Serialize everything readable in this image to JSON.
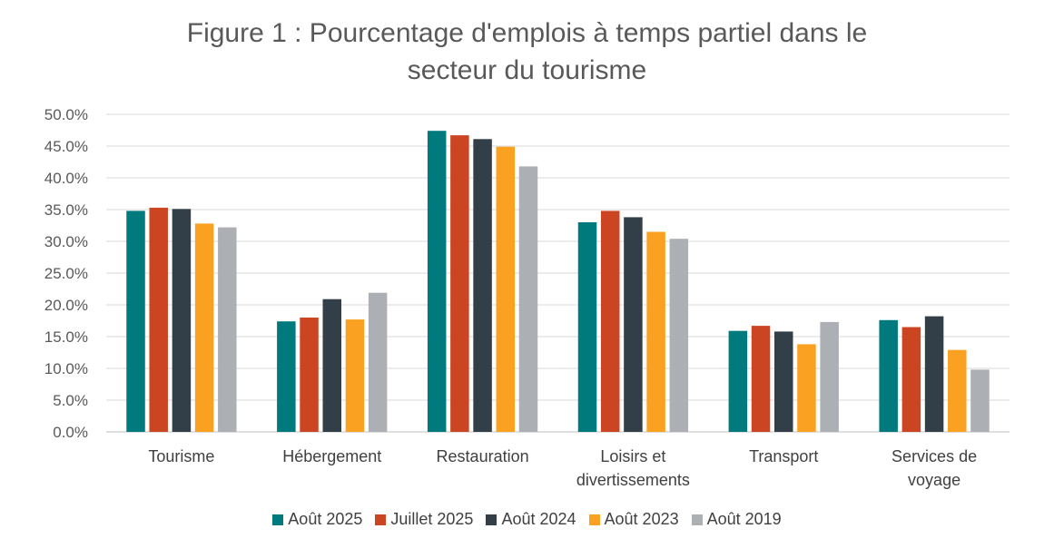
{
  "chart_data": {
    "type": "bar",
    "title_lines": [
      "Figure 1 : Pourcentage d'emplois à temps partiel dans le",
      "secteur du tourisme"
    ],
    "categories": [
      [
        "Tourisme"
      ],
      [
        "Hébergement"
      ],
      [
        "Restauration"
      ],
      [
        "Loisirs et",
        "divertissements"
      ],
      [
        "Transport"
      ],
      [
        "Services de",
        "voyage"
      ]
    ],
    "series": [
      {
        "name": "Août 2025",
        "color": "#007A7C",
        "values": [
          34.8,
          17.4,
          47.4,
          33.0,
          15.9,
          17.6
        ]
      },
      {
        "name": "Juillet 2025",
        "color": "#CC4522",
        "values": [
          35.3,
          18.0,
          46.7,
          34.8,
          16.7,
          16.5
        ]
      },
      {
        "name": "Août 2024",
        "color": "#333F48",
        "values": [
          35.1,
          20.9,
          46.1,
          33.8,
          15.8,
          18.2
        ]
      },
      {
        "name": "Août 2023",
        "color": "#FBA122",
        "values": [
          32.8,
          17.7,
          44.9,
          31.5,
          13.8,
          12.9
        ]
      },
      {
        "name": "Août 2019",
        "color": "#ACAFB3",
        "values": [
          32.2,
          21.9,
          41.8,
          30.4,
          17.3,
          9.8
        ]
      }
    ],
    "y_ticks": [
      "0.0%",
      "5.0%",
      "10.0%",
      "15.0%",
      "20.0%",
      "25.0%",
      "30.0%",
      "35.0%",
      "40.0%",
      "45.0%",
      "50.0%"
    ],
    "ylim": [
      0,
      50
    ],
    "grid": true,
    "legend_position": "bottom"
  }
}
